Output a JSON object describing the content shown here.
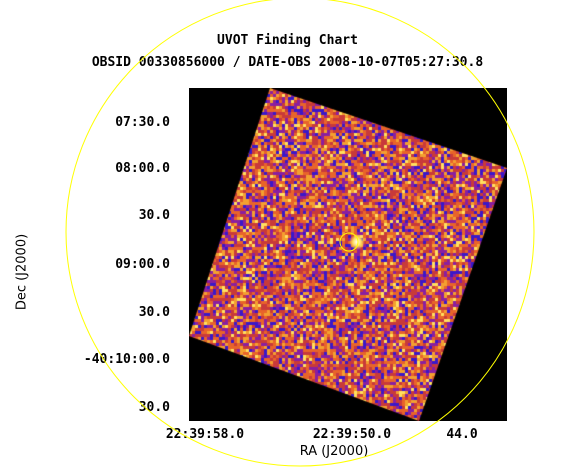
{
  "title": "UVOT Finding Chart",
  "subtitle": "OBSID 00330856000 / DATE-OBS 2008-10-07T05:27:30.8",
  "axes": {
    "xlabel": "RA (J2000)",
    "ylabel": "Dec (J2000)",
    "xticks": [
      "22:39:58.0",
      "22:39:50.0",
      "44.0"
    ],
    "yticks": [
      "07:30.0",
      "08:00.0",
      "30.0",
      "09:00.0",
      "30.0",
      "-40:10:00.0",
      "30.0"
    ]
  },
  "colors": {
    "background": "#000000",
    "circle": "#ffff00",
    "palette": [
      "#3b18c8",
      "#8a1fa0",
      "#c83a3a",
      "#e8642a",
      "#f3a030",
      "#ffe060"
    ]
  }
}
